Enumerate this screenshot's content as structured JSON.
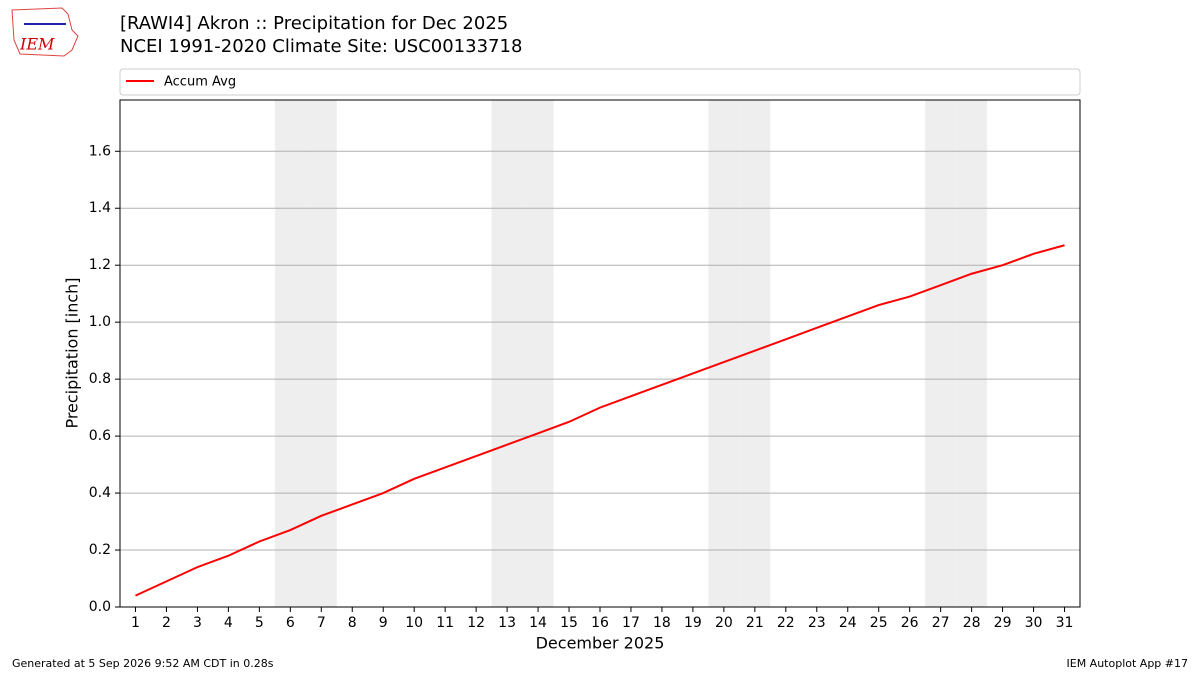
{
  "chart_data": {
    "type": "line",
    "title": "[RAWI4] Akron :: Precipitation for Dec 2025",
    "subtitle": "NCEI 1991-2020 Climate Site: USC00133718",
    "xlabel": "December 2025",
    "ylabel": "Precipitation [inch]",
    "x": [
      1,
      2,
      3,
      4,
      5,
      6,
      7,
      8,
      9,
      10,
      11,
      12,
      13,
      14,
      15,
      16,
      17,
      18,
      19,
      20,
      21,
      22,
      23,
      24,
      25,
      26,
      27,
      28,
      29,
      30,
      31
    ],
    "series": [
      {
        "name": "Accum Avg",
        "color": "#ff0000",
        "values": [
          0.04,
          0.09,
          0.14,
          0.18,
          0.23,
          0.27,
          0.32,
          0.36,
          0.4,
          0.45,
          0.49,
          0.53,
          0.57,
          0.61,
          0.65,
          0.7,
          0.74,
          0.78,
          0.82,
          0.86,
          0.9,
          0.94,
          0.98,
          1.02,
          1.06,
          1.09,
          1.13,
          1.17,
          1.2,
          1.24,
          1.27
        ]
      }
    ],
    "shaded_days": [
      6,
      7,
      13,
      14,
      20,
      21,
      27,
      28
    ],
    "xlim": [
      0.5,
      31.5
    ],
    "ylim": [
      0,
      1.78
    ],
    "yticks": [
      {
        "value": 0,
        "label": "0.0"
      },
      0.2,
      0.4,
      0.6,
      0.8,
      {
        "value": 1,
        "label": "1.0"
      },
      1.2,
      1.4,
      1.6
    ],
    "grid": true,
    "legend": "top",
    "logo": "IEM",
    "footer_left": "Generated at 5 Sep 2026 9:52 AM CDT in 0.28s",
    "footer_right": "IEM Autoplot App #17"
  }
}
